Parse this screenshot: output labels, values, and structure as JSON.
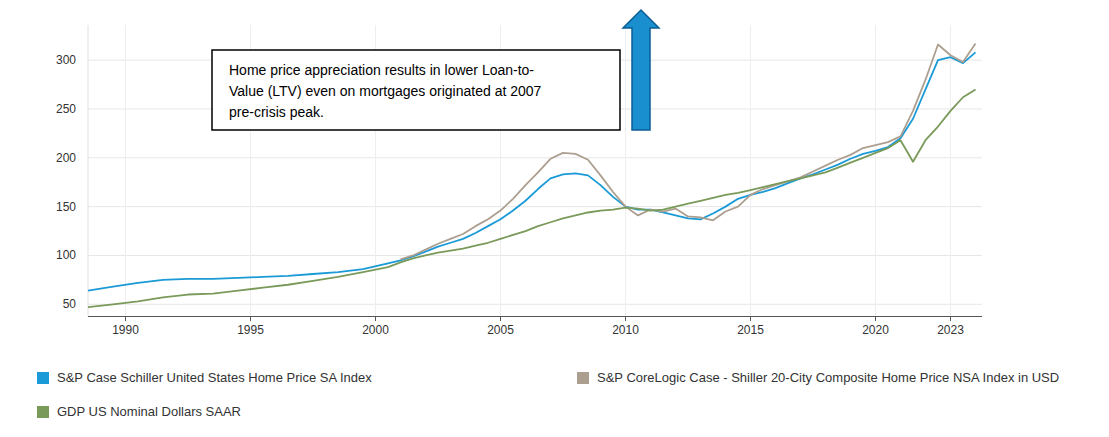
{
  "chart_data": {
    "type": "line",
    "annotation": [
      "Home price appreciation results in lower Loan-to-",
      "Value (LTV) even on mortgages originated at 2007",
      "pre-crisis peak."
    ],
    "x": [
      1988.5,
      1989.5,
      1990.5,
      1991.5,
      1992.5,
      1993.5,
      1994.5,
      1995.5,
      1996.5,
      1997.5,
      1998.5,
      1999.5,
      2000.5,
      2001,
      2001.5,
      2002,
      2002.5,
      2003,
      2003.5,
      2004,
      2004.5,
      2005,
      2005.5,
      2006,
      2006.5,
      2007,
      2007.5,
      2008,
      2008.5,
      2009,
      2009.5,
      2010,
      2010.5,
      2011,
      2011.5,
      2012,
      2012.5,
      2013,
      2013.5,
      2014,
      2014.5,
      2015,
      2015.5,
      2016,
      2016.5,
      2017,
      2017.5,
      2018,
      2018.5,
      2019,
      2019.5,
      2020,
      2020.5,
      2021,
      2021.5,
      2022,
      2022.5,
      2023,
      2023.5,
      2024
    ],
    "series": [
      {
        "name": "S&P Case Schiller United States Home Price SA Index",
        "color": "#1a9ad6",
        "values": [
          64,
          68,
          72,
          75,
          76,
          76,
          77,
          78,
          79,
          81,
          83,
          86,
          92,
          95,
          99,
          104,
          109,
          113,
          117,
          123,
          130,
          137,
          146,
          156,
          168,
          179,
          183,
          184,
          182,
          172,
          160,
          150,
          147,
          147,
          144,
          141,
          138,
          137,
          143,
          150,
          158,
          162,
          165,
          169,
          174,
          179,
          183,
          188,
          193,
          199,
          204,
          207,
          211,
          220,
          240,
          270,
          300,
          303,
          297,
          308
        ]
      },
      {
        "name": "S&P CoreLogic Case - Shiller 20-City Composite Home Price NSA Index in USD",
        "color": "#ad9f90",
        "values": [
          null,
          null,
          null,
          null,
          null,
          null,
          null,
          null,
          null,
          null,
          null,
          null,
          null,
          96,
          100,
          106,
          112,
          117,
          122,
          130,
          137,
          146,
          158,
          172,
          185,
          199,
          205,
          204,
          198,
          182,
          165,
          150,
          141,
          147,
          145,
          148,
          140,
          139,
          136,
          145,
          150,
          162,
          168,
          172,
          176,
          180,
          186,
          192,
          198,
          203,
          210,
          213,
          216,
          222,
          248,
          280,
          316,
          305,
          298,
          317
        ]
      },
      {
        "name": "GDP US Nominal Dollars SAAR",
        "color": "#7a9a5a",
        "values": [
          47,
          50,
          53,
          57,
          60,
          61,
          64,
          67,
          70,
          74,
          78,
          83,
          88,
          93,
          97,
          100,
          103,
          105,
          107,
          110,
          113,
          117,
          121,
          125,
          130,
          134,
          138,
          141,
          144,
          146,
          147,
          149,
          148,
          146,
          147,
          150,
          153,
          156,
          159,
          162,
          164,
          167,
          170,
          173,
          176,
          179,
          182,
          185,
          190,
          195,
          200,
          205,
          210,
          218,
          196,
          218,
          232,
          248,
          262,
          270
        ]
      }
    ],
    "xlim": [
      1988.5,
      2024.26
    ],
    "xticks": [
      1990,
      1995,
      2000,
      2005,
      2010,
      2015,
      2020,
      2023
    ],
    "ylim": [
      38,
      336
    ],
    "yticks": [
      50,
      100,
      150,
      200,
      250,
      300
    ],
    "grid": true,
    "legend": "bottom"
  }
}
